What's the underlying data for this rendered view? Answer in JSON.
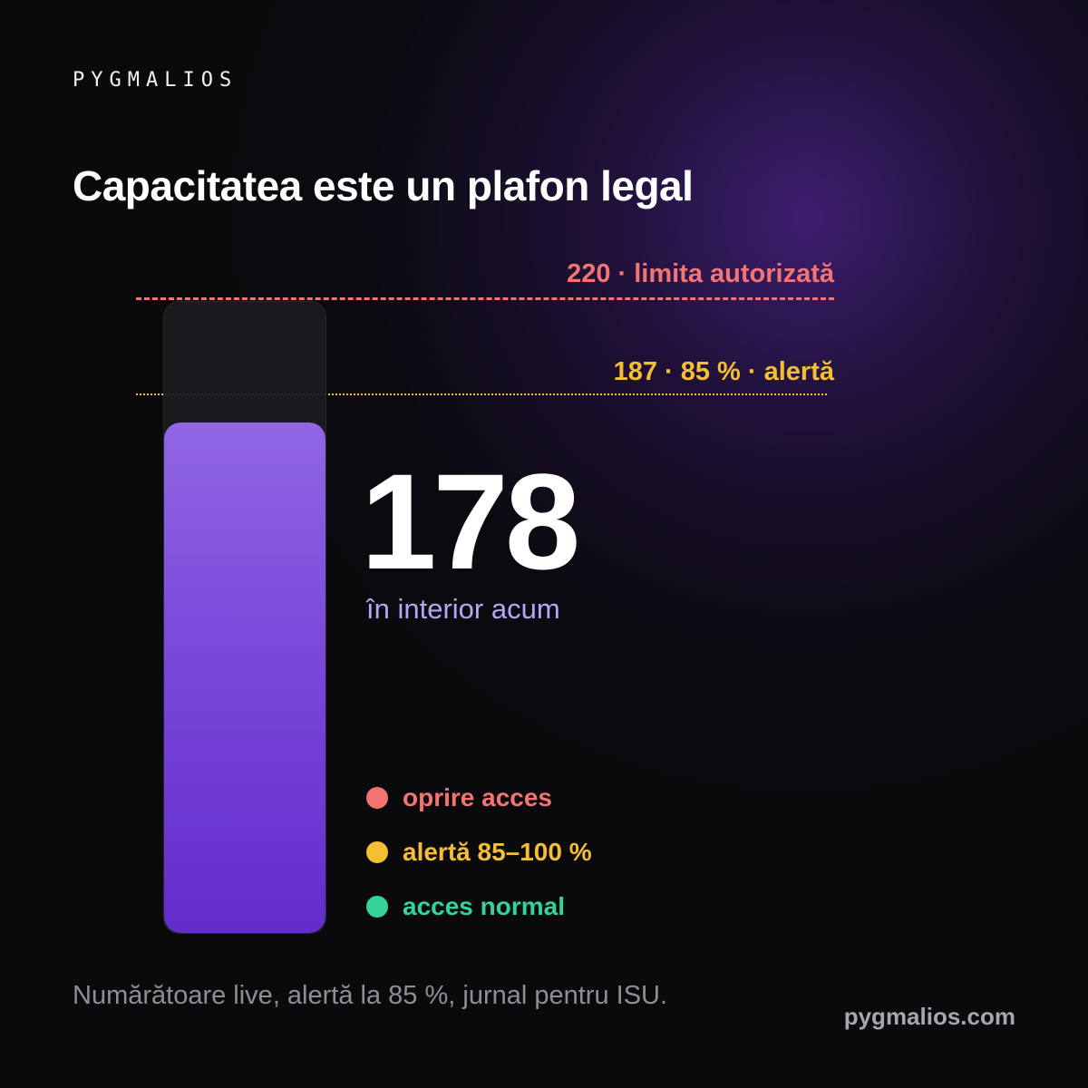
{
  "brand": {
    "name": "PYGMALIOS"
  },
  "title": "Capacitatea este un plafon legal",
  "gauge": {
    "max": 220,
    "limit_label": "220 · limita autorizată",
    "alert_threshold": 187,
    "alert_label": "187 · 85 % · alertă",
    "current": 178,
    "current_label": "178",
    "current_caption": "în interior acum",
    "fill_color": "#7a48db",
    "limit_color": "#f47373",
    "alert_color": "#f5be33"
  },
  "legend": [
    {
      "label": "oprire acces",
      "color": "#f47373"
    },
    {
      "label": "alertă 85–100 %",
      "color": "#f5be33"
    },
    {
      "label": "acces normal",
      "color": "#34d399"
    }
  ],
  "footer": {
    "note": "Numărătoare live, alertă la 85 %, jurnal pentru ISU.",
    "website": "pygmalios.com"
  }
}
